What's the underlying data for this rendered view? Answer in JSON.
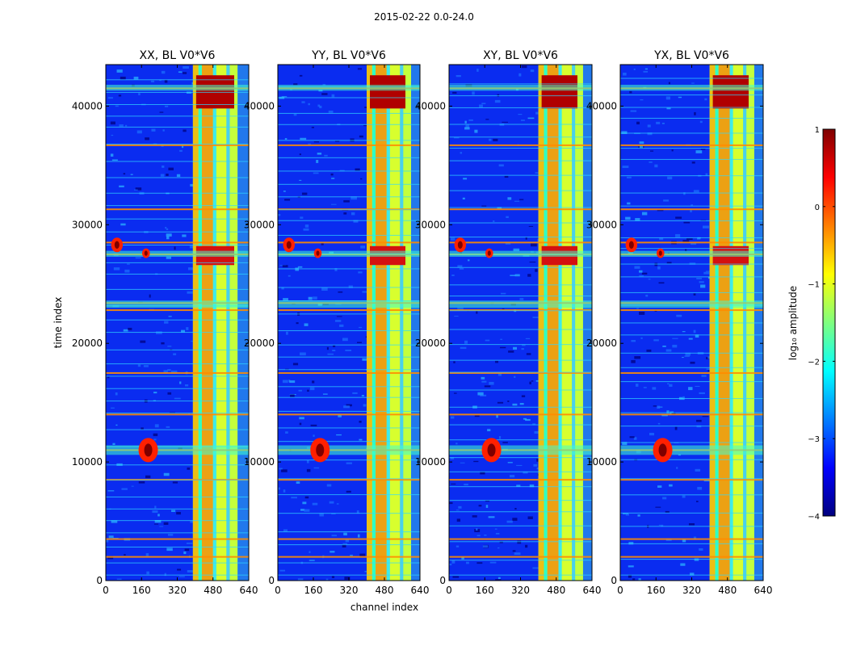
{
  "suptitle": "2015-02-22 0.0-24.0",
  "chart_data": [
    {
      "type": "heatmap",
      "title": "XX, BL V0*V6",
      "xlabel": "",
      "ylabel": "time index",
      "xlim": [
        0,
        640
      ],
      "ylim": [
        0,
        43500
      ],
      "xticks": [
        0,
        160,
        320,
        480,
        640
      ],
      "yticks": [
        0,
        10000,
        20000,
        30000,
        40000
      ],
      "ytick_labels": [
        "0",
        "10000",
        "20000",
        "30000",
        "40000"
      ],
      "hot_channel_bands": [
        [
          390,
          640
        ]
      ],
      "rfi_time_rows": [
        2000,
        3500,
        8500,
        11000,
        14000,
        17500,
        22800,
        23400,
        27500,
        28500,
        31300,
        36700,
        41500
      ]
    },
    {
      "type": "heatmap",
      "title": "YY, BL V0*V6",
      "xlabel": "channel index",
      "ylabel": "",
      "xlim": [
        0,
        640
      ],
      "ylim": [
        0,
        43500
      ],
      "xticks": [
        0,
        160,
        320,
        480,
        640
      ],
      "yticks": [
        0,
        10000,
        20000,
        30000,
        40000
      ],
      "ytick_labels": [
        "0",
        "10000",
        "20000",
        "30000",
        "40000"
      ],
      "hot_channel_bands": [
        [
          400,
          640
        ]
      ],
      "rfi_time_rows": [
        2000,
        3500,
        8500,
        11000,
        14000,
        17500,
        22800,
        23400,
        27500,
        28500,
        31300,
        36700,
        41500
      ]
    },
    {
      "type": "heatmap",
      "title": "XY, BL V0*V6",
      "xlabel": "",
      "ylabel": "",
      "xlim": [
        0,
        640
      ],
      "ylim": [
        0,
        43500
      ],
      "xticks": [
        0,
        160,
        320,
        480,
        640
      ],
      "yticks": [
        0,
        10000,
        20000,
        30000,
        40000
      ],
      "ytick_labels": [
        "0",
        "10000",
        "20000",
        "30000",
        "40000"
      ],
      "hot_channel_bands": [
        [
          400,
          640
        ]
      ],
      "rfi_time_rows": [
        2000,
        3500,
        8500,
        11000,
        14000,
        17500,
        22800,
        23400,
        27500,
        28500,
        31300,
        36700,
        41500
      ]
    },
    {
      "type": "heatmap",
      "title": "YX, BL V0*V6",
      "xlabel": "",
      "ylabel": "",
      "xlim": [
        0,
        640
      ],
      "ylim": [
        0,
        43500
      ],
      "xticks": [
        0,
        160,
        320,
        480,
        640
      ],
      "yticks": [
        0,
        10000,
        20000,
        30000,
        40000
      ],
      "ytick_labels": [
        "0",
        "10000",
        "20000",
        "30000",
        "40000"
      ],
      "hot_channel_bands": [
        [
          400,
          640
        ]
      ],
      "rfi_time_rows": [
        2000,
        3500,
        8500,
        11000,
        14000,
        17500,
        22800,
        23400,
        27500,
        28500,
        31300,
        36700,
        41500
      ]
    }
  ],
  "colorbar": {
    "label": "log₁₀ amplitude",
    "range": [
      -4,
      1
    ],
    "ticks": [
      1,
      0,
      -1,
      -2,
      -3,
      -4
    ],
    "tick_labels": [
      "1",
      "0",
      "−1",
      "−2",
      "−3",
      "−4"
    ],
    "colormap": "jet",
    "stops": [
      "#00007f",
      "#0000ff",
      "#007fff",
      "#00ffff",
      "#7fff7f",
      "#ffff00",
      "#ff7f00",
      "#ff0000",
      "#7f0000"
    ]
  }
}
